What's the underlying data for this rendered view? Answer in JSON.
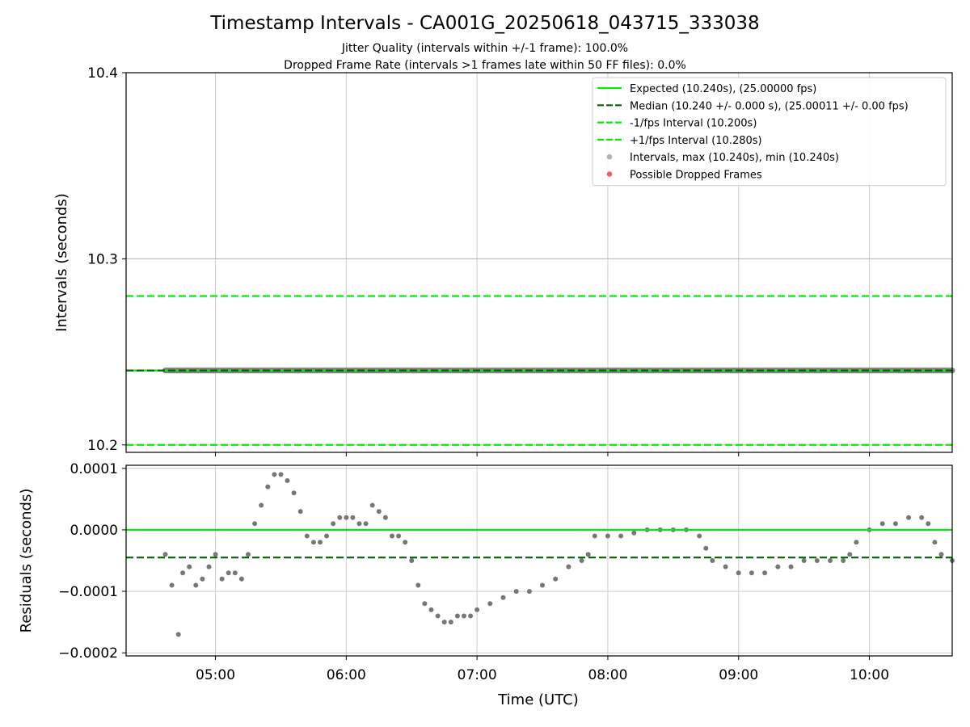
{
  "chart_data": [
    {
      "type": "scatter",
      "title": "Timestamp Intervals - CA001G_20250618_043715_333038",
      "subtitle_lines": [
        "Jitter Quality (intervals within +/-1 frame): 100.0%",
        "Dropped Frame Rate (intervals >1 frames late within 50 FF files): 0.0%"
      ],
      "ylabel": "Intervals (seconds)",
      "ylim": [
        10.196,
        10.4
      ],
      "yticks": [
        10.2,
        10.3,
        10.4
      ],
      "ytick_labels": [
        "10.2",
        "10.3",
        "10.4"
      ],
      "grid": true,
      "legend_position": "upper-right",
      "reference_lines": [
        {
          "name": "Expected (10.240s), (25.00000 fps)",
          "y": 10.24,
          "style": "solid",
          "color": "#00ee00"
        },
        {
          "name": "Median (10.240 +/- 0.000 s), (25.00011 +/- 0.00 fps)",
          "y": 10.24,
          "style": "dashed",
          "color": "#006400"
        },
        {
          "name": "-1/fps Interval (10.200s)",
          "y": 10.2,
          "style": "dashed",
          "color": "#00ee00"
        },
        {
          "name": "+1/fps Interval (10.280s)",
          "y": 10.28,
          "style": "dashed",
          "color": "#00ee00"
        }
      ],
      "series": [
        {
          "name": "Intervals, max (10.240s), min (10.240s)",
          "marker": "circle",
          "color": "#808080",
          "x_range": [
            "04:37",
            "10:38"
          ],
          "y": 10.24
        },
        {
          "name": "Possible Dropped Frames",
          "marker": "circle",
          "color": "#ee4444",
          "points": []
        }
      ]
    },
    {
      "type": "scatter",
      "xlabel": "Time (UTC)",
      "ylabel": "Residuals (seconds)",
      "x_axis_range": [
        "04:19",
        "10:38"
      ],
      "ylim": [
        -0.000205,
        0.000105
      ],
      "xtick_labels": [
        "05:00",
        "06:00",
        "07:00",
        "08:00",
        "09:00",
        "10:00"
      ],
      "yticks": [
        0.0001,
        0.0,
        -0.0001,
        -0.0002
      ],
      "ytick_labels": [
        "0.0001",
        "0.0000",
        "−0.0001",
        "−0.0002"
      ],
      "grid": true,
      "reference_lines": [
        {
          "y": 0.0,
          "style": "solid",
          "color": "#00ee00"
        },
        {
          "y": -4.5e-05,
          "style": "dashed",
          "color": "#006400"
        }
      ],
      "series": [
        {
          "marker": "circle",
          "color": "#777777",
          "x": [
            "04:37",
            "04:40",
            "04:43",
            "04:45",
            "04:48",
            "04:51",
            "04:54",
            "04:57",
            "05:00",
            "05:03",
            "05:06",
            "05:09",
            "05:12",
            "05:15",
            "05:18",
            "05:21",
            "05:24",
            "05:27",
            "05:30",
            "05:33",
            "05:36",
            "05:39",
            "05:42",
            "05:45",
            "05:48",
            "05:51",
            "05:54",
            "05:57",
            "06:00",
            "06:03",
            "06:06",
            "06:09",
            "06:12",
            "06:15",
            "06:18",
            "06:21",
            "06:24",
            "06:27",
            "06:30",
            "06:33",
            "06:36",
            "06:39",
            "06:42",
            "06:45",
            "06:48",
            "06:51",
            "06:54",
            "06:57",
            "07:00",
            "07:06",
            "07:12",
            "07:18",
            "07:24",
            "07:30",
            "07:36",
            "07:42",
            "07:48",
            "07:51",
            "07:54",
            "08:00",
            "08:06",
            "08:12",
            "08:18",
            "08:24",
            "08:30",
            "08:36",
            "08:42",
            "08:45",
            "08:48",
            "08:54",
            "09:00",
            "09:06",
            "09:12",
            "09:18",
            "09:24",
            "09:30",
            "09:36",
            "09:42",
            "09:48",
            "09:51",
            "09:54",
            "10:00",
            "10:06",
            "10:12",
            "10:18",
            "10:24",
            "10:27",
            "10:30",
            "10:33",
            "10:38"
          ],
          "y": [
            -4e-05,
            -9e-05,
            -0.00017,
            -7e-05,
            -6e-05,
            -9e-05,
            -8e-05,
            -6e-05,
            -4e-05,
            -8e-05,
            -7e-05,
            -7e-05,
            -8e-05,
            -4e-05,
            1e-05,
            4e-05,
            7e-05,
            9e-05,
            9e-05,
            8e-05,
            6e-05,
            3e-05,
            -1e-05,
            -2e-05,
            -2e-05,
            -1e-05,
            1e-05,
            2e-05,
            2e-05,
            2e-05,
            1e-05,
            1e-05,
            4e-05,
            3e-05,
            2e-05,
            -1e-05,
            -1e-05,
            -2e-05,
            -5e-05,
            -9e-05,
            -0.00012,
            -0.00013,
            -0.00014,
            -0.00015,
            -0.00015,
            -0.00014,
            -0.00014,
            -0.00014,
            -0.00013,
            -0.00012,
            -0.00011,
            -0.0001,
            -0.0001,
            -9e-05,
            -8e-05,
            -6e-05,
            -5e-05,
            -4e-05,
            -1e-05,
            -1e-05,
            -1e-05,
            -5e-06,
            0.0,
            0.0,
            0.0,
            0.0,
            -1e-05,
            -3e-05,
            -5e-05,
            -6e-05,
            -7e-05,
            -7e-05,
            -7e-05,
            -6e-05,
            -6e-05,
            -5e-05,
            -5e-05,
            -5e-05,
            -5e-05,
            -4e-05,
            -2e-05,
            0.0,
            1e-05,
            1e-05,
            2e-05,
            2e-05,
            1e-05,
            -2e-05,
            -4e-05,
            -5e-05
          ]
        }
      ]
    }
  ]
}
